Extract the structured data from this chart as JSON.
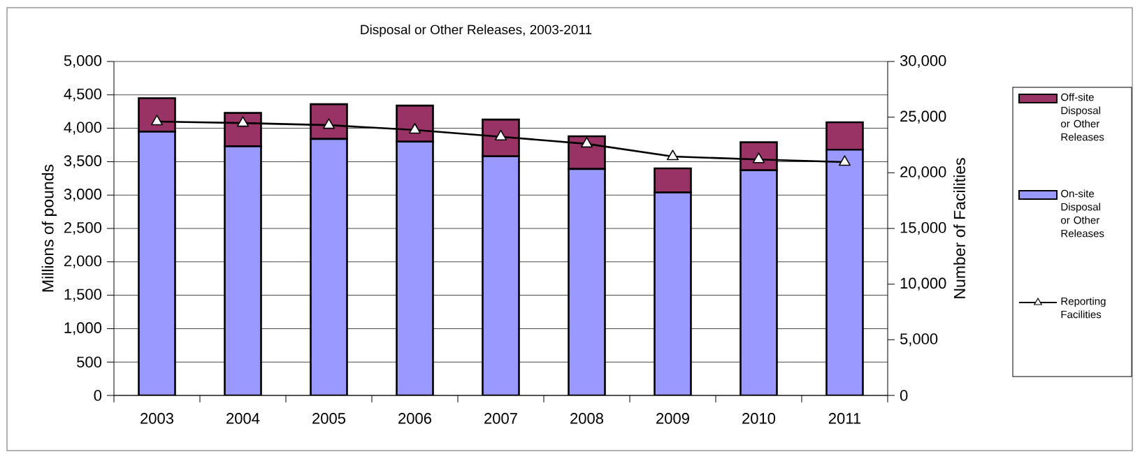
{
  "chart_data": {
    "type": "bar",
    "title": "Disposal or Other Releases, 2003-2011",
    "ylabel": "Millions of pounds",
    "y2label": "Number of Facilities",
    "categories": [
      "2003",
      "2004",
      "2005",
      "2006",
      "2007",
      "2008",
      "2009",
      "2010",
      "2011"
    ],
    "stacked": true,
    "series": [
      {
        "name": "On-site Disposal or Other Releases",
        "color": "#9999ff",
        "values": [
          3950,
          3730,
          3840,
          3800,
          3580,
          3390,
          3040,
          3370,
          3680
        ]
      },
      {
        "name": "Off-site Disposal or Other Releases",
        "color": "#993366",
        "values": [
          500,
          500,
          520,
          540,
          550,
          490,
          360,
          420,
          410
        ]
      },
      {
        "name": "Reporting Facilities",
        "type": "line",
        "axis": "y2",
        "color": "#000000",
        "marker": "triangle",
        "values": [
          24600,
          24470,
          24280,
          23850,
          23240,
          22600,
          21460,
          21200,
          20960
        ]
      }
    ],
    "ylim": [
      0,
      5000
    ],
    "yticks": [
      0,
      500,
      {
        "value": 1000,
        "label": "1,000"
      },
      {
        "value": 1500,
        "label": "1,500"
      },
      {
        "value": 2000,
        "label": "2,000"
      },
      {
        "value": 2500,
        "label": "2,500"
      },
      {
        "value": 3000,
        "label": "3,000"
      },
      {
        "value": 3500,
        "label": "3,500"
      },
      {
        "value": 4000,
        "label": "4,000"
      },
      {
        "value": 4500,
        "label": "4,500"
      },
      {
        "value": 5000,
        "label": "5,000"
      }
    ],
    "y2lim": [
      0,
      30000
    ],
    "y2ticks": [
      0,
      {
        "value": 5000,
        "label": "5,000"
      },
      {
        "value": 10000,
        "label": "10,000"
      },
      {
        "value": 15000,
        "label": "15,000"
      },
      {
        "value": 20000,
        "label": "20,000"
      },
      {
        "value": 25000,
        "label": "25,000"
      },
      {
        "value": 30000,
        "label": "30,000"
      }
    ],
    "grid": "y",
    "legend": "right"
  }
}
